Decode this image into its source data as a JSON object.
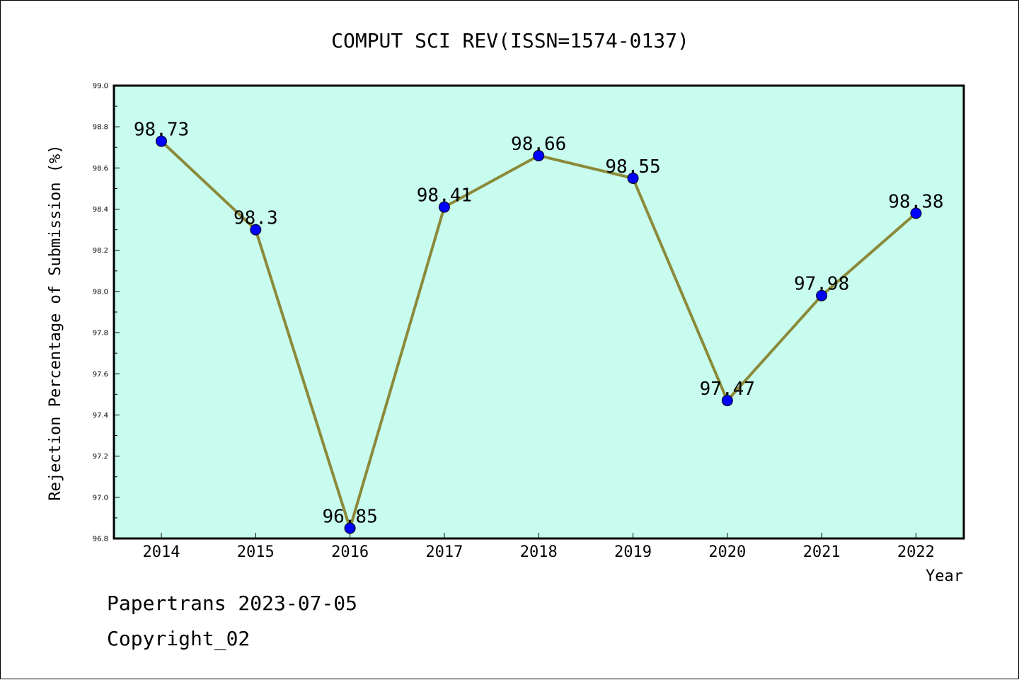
{
  "chart_data": {
    "type": "line",
    "title": "COMPUT SCI REV(ISSN=1574-0137)",
    "xlabel": "Year",
    "ylabel": "Rejection Percentage of Submission (%)",
    "categories": [
      "2014",
      "2015",
      "2016",
      "2017",
      "2018",
      "2019",
      "2020",
      "2021",
      "2022"
    ],
    "values": [
      98.73,
      98.3,
      96.85,
      98.41,
      98.66,
      98.55,
      97.47,
      97.98,
      98.38
    ],
    "data_labels": [
      "98.73",
      "98.3",
      "96.85",
      "98.41",
      "98.66",
      "98.55",
      "97.47",
      "97.98",
      "98.38"
    ],
    "ylim": [
      96.8,
      99.0
    ],
    "yticks": [
      "96.8",
      "97.0",
      "97.2",
      "97.4",
      "97.6",
      "97.8",
      "98.0",
      "98.2",
      "98.4",
      "98.6",
      "98.8",
      "99.0"
    ],
    "grid": false,
    "colors": {
      "plot_background": "#c8fcee",
      "line": "#8b8a3a",
      "marker": "#0000ff"
    }
  },
  "footer": {
    "line1": "Papertrans 2023-07-05",
    "line2": "Copyright_02"
  }
}
